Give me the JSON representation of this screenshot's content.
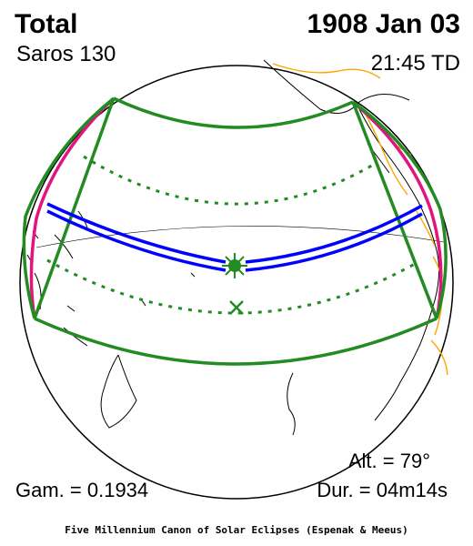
{
  "header": {
    "eclipse_type": "Total",
    "date": "1908 Jan 03",
    "saros": "Saros 130",
    "time": "21:45 TD"
  },
  "stats": {
    "altitude": "Alt. = 79°",
    "gamma": "Gam. = 0.1934",
    "duration": "Dur. = 04m14s"
  },
  "footer": {
    "credit": "Five Millennium Canon of Solar Eclipses (Espenak & Meeus)"
  },
  "colors": {
    "globe": "#000000",
    "penumbral_limits": "#228b22",
    "central_path": "#0000ff",
    "rise_set_curve": "#e0157f",
    "national_borders": "#ffa500",
    "greatest_eclipse": "#228b22"
  },
  "markers": {
    "greatest_eclipse_icon": "sun-burst-icon",
    "subsolar_point_icon": "x-mark-icon"
  }
}
